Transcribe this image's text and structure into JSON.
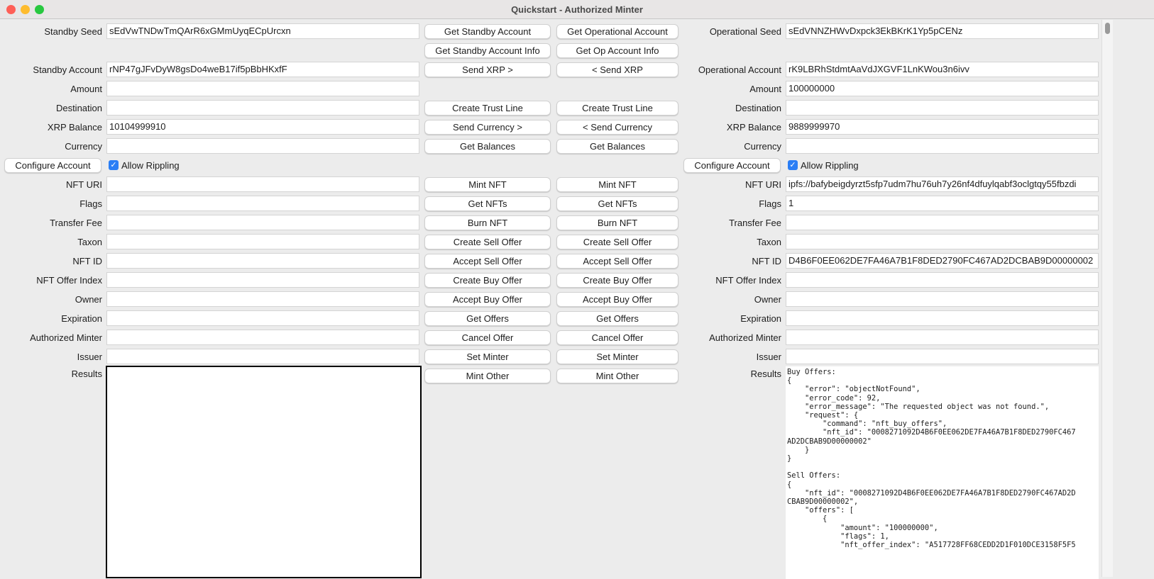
{
  "window": {
    "title": "Quickstart - Authorized Minter"
  },
  "standby": {
    "fields": [
      {
        "row": 0,
        "label": "Standby Seed",
        "value": "sEdVwTNDwTmQArR6xGMmUyqECpUrcxn"
      },
      {
        "row": 2,
        "label": "Standby Account",
        "value": "rNP47gJFvDyW8gsDo4weB17if5pBbHKxfF"
      },
      {
        "row": 3,
        "label": "Amount",
        "value": ""
      },
      {
        "row": 4,
        "label": "Destination",
        "value": ""
      },
      {
        "row": 5,
        "label": "XRP Balance",
        "value": "10104999910"
      },
      {
        "row": 6,
        "label": "Currency",
        "value": ""
      },
      {
        "row": 8,
        "label": "NFT URI",
        "value": ""
      },
      {
        "row": 9,
        "label": "Flags",
        "value": ""
      },
      {
        "row": 10,
        "label": "Transfer Fee",
        "value": ""
      },
      {
        "row": 11,
        "label": "Taxon",
        "value": ""
      },
      {
        "row": 12,
        "label": "NFT ID",
        "value": ""
      },
      {
        "row": 13,
        "label": "NFT Offer Index",
        "value": ""
      },
      {
        "row": 14,
        "label": "Owner",
        "value": ""
      },
      {
        "row": 15,
        "label": "Expiration",
        "value": ""
      },
      {
        "row": 16,
        "label": "Authorized Minter",
        "value": ""
      },
      {
        "row": 17,
        "label": "Issuer",
        "value": ""
      }
    ],
    "configure_label": "Configure Account",
    "allow_rippling_label": "Allow Rippling",
    "allow_rippling": true,
    "results_label": "Results",
    "results": ""
  },
  "operational": {
    "fields": [
      {
        "row": 0,
        "label": "Operational Seed",
        "value": "sEdVNNZHWvDxpck3EkBKrK1Yp5pCENz"
      },
      {
        "row": 2,
        "label": "Operational Account",
        "value": "rK9LBRhStdmtAaVdJXGVF1LnKWou3n6ivv"
      },
      {
        "row": 3,
        "label": "Amount",
        "value": "100000000"
      },
      {
        "row": 4,
        "label": "Destination",
        "value": ""
      },
      {
        "row": 5,
        "label": "XRP Balance",
        "value": "9889999970"
      },
      {
        "row": 6,
        "label": "Currency",
        "value": ""
      },
      {
        "row": 8,
        "label": "NFT URI",
        "value": "ipfs://bafybeigdyrzt5sfp7udm7hu76uh7y26nf4dfuylqabf3oclgtqy55fbzdi"
      },
      {
        "row": 9,
        "label": "Flags",
        "value": "1"
      },
      {
        "row": 10,
        "label": "Transfer Fee",
        "value": ""
      },
      {
        "row": 11,
        "label": "Taxon",
        "value": ""
      },
      {
        "row": 12,
        "label": "NFT ID",
        "value": "D4B6F0EE062DE7FA46A7B1F8DED2790FC467AD2DCBAB9D00000002"
      },
      {
        "row": 13,
        "label": "NFT Offer Index",
        "value": ""
      },
      {
        "row": 14,
        "label": "Owner",
        "value": ""
      },
      {
        "row": 15,
        "label": "Expiration",
        "value": ""
      },
      {
        "row": 16,
        "label": "Authorized Minter",
        "value": ""
      },
      {
        "row": 17,
        "label": "Issuer",
        "value": ""
      }
    ],
    "configure_label": "Configure Account",
    "allow_rippling_label": "Allow Rippling",
    "allow_rippling": true,
    "results_label": "Results",
    "results": "Buy Offers:\n{\n    \"error\": \"objectNotFound\",\n    \"error_code\": 92,\n    \"error_message\": \"The requested object was not found.\",\n    \"request\": {\n        \"command\": \"nft_buy_offers\",\n        \"nft_id\": \"0008271092D4B6F0EE062DE7FA46A7B1F8DED2790FC467\nAD2DCBAB9D00000002\"\n    }\n}\n\nSell Offers:\n{\n    \"nft_id\": \"0008271092D4B6F0EE062DE7FA46A7B1F8DED2790FC467AD2D\nCBAB9D00000002\",\n    \"offers\": [\n        {\n            \"amount\": \"100000000\",\n            \"flags\": 1,\n            \"nft_offer_index\": \"A517728FF68CEDD2D1F010DCE3158F5F5"
  },
  "buttons": [
    {
      "row": 0,
      "standby": "Get Standby Account",
      "operational": "Get Operational Account"
    },
    {
      "row": 1,
      "standby": "Get Standby Account Info",
      "operational": "Get Op Account Info"
    },
    {
      "row": 2,
      "standby": "Send XRP >",
      "operational": "< Send XRP"
    },
    {
      "row": 4,
      "standby": "Create Trust Line",
      "operational": "Create Trust Line"
    },
    {
      "row": 5,
      "standby": "Send Currency >",
      "operational": "< Send Currency"
    },
    {
      "row": 6,
      "standby": "Get Balances",
      "operational": "Get Balances"
    },
    {
      "row": 8,
      "standby": "Mint NFT",
      "operational": "Mint NFT"
    },
    {
      "row": 9,
      "standby": "Get NFTs",
      "operational": "Get NFTs"
    },
    {
      "row": 10,
      "standby": "Burn NFT",
      "operational": "Burn NFT"
    },
    {
      "row": 11,
      "standby": "Create Sell Offer",
      "operational": "Create Sell Offer"
    },
    {
      "row": 12,
      "standby": "Accept Sell Offer",
      "operational": "Accept Sell Offer"
    },
    {
      "row": 13,
      "standby": "Create Buy Offer",
      "operational": "Create Buy Offer"
    },
    {
      "row": 14,
      "standby": "Accept Buy Offer",
      "operational": "Accept Buy Offer"
    },
    {
      "row": 15,
      "standby": "Get Offers",
      "operational": "Get Offers"
    },
    {
      "row": 16,
      "standby": "Cancel Offer",
      "operational": "Cancel Offer"
    },
    {
      "row": 17,
      "standby": "Set Minter",
      "operational": "Set Minter"
    },
    {
      "row": 18,
      "standby": "Mint Other",
      "operational": "Mint Other"
    }
  ]
}
